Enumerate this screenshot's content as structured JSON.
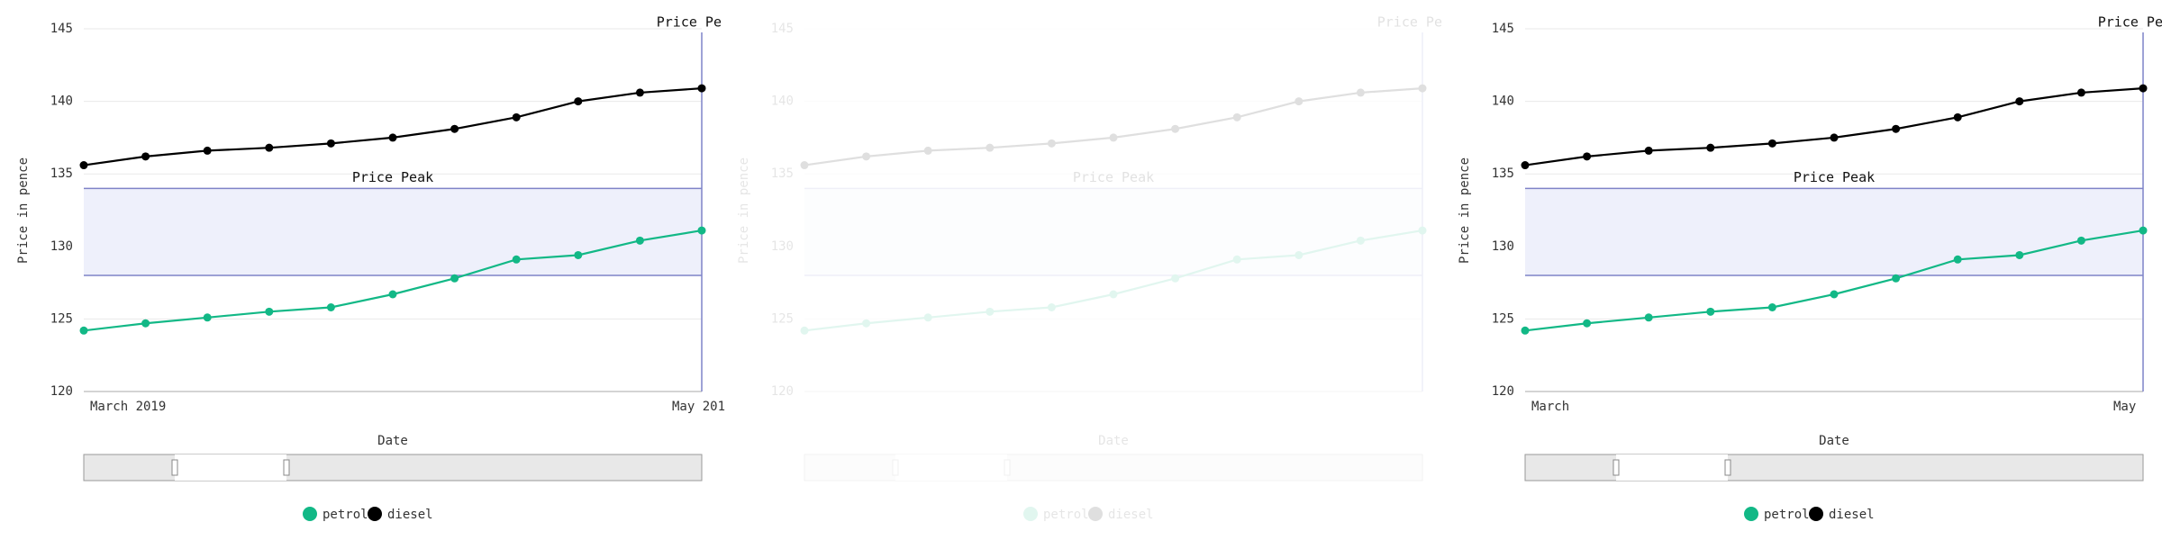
{
  "chart_data": [
    {
      "type": "line",
      "ylabel": "Price in pence",
      "xlabel": "Date",
      "categories": [
        "March 2019",
        null,
        null,
        null,
        null,
        null,
        null,
        null,
        null,
        null,
        "May 201"
      ],
      "series": [
        {
          "name": "petrol",
          "color": "#12b886",
          "values": [
            124.2,
            124.7,
            125.1,
            125.5,
            125.8,
            126.7,
            127.8,
            129.1,
            129.4,
            130.4,
            131.1
          ]
        },
        {
          "name": "diesel",
          "color": "#000000",
          "values": [
            135.6,
            136.2,
            136.6,
            136.8,
            137.1,
            137.5,
            138.1,
            138.9,
            140.0,
            140.6,
            140.9
          ]
        }
      ],
      "ylim": [
        120,
        145
      ],
      "yticks": [
        120,
        125,
        130,
        135,
        140,
        145
      ],
      "grid": true,
      "annotations": [
        {
          "label": "Price Peak",
          "y_range": [
            128,
            134
          ]
        },
        {
          "label": "Price Pe",
          "category": 10
        }
      ],
      "faded": false
    },
    {
      "type": "line",
      "ylabel": "Price in pence",
      "xlabel": "Date",
      "categories": [
        null,
        null,
        null,
        null,
        null,
        null,
        null,
        null,
        null,
        null,
        null
      ],
      "series": [
        {
          "name": "petrol",
          "color": "#12b886",
          "values": [
            124.2,
            124.7,
            125.1,
            125.5,
            125.8,
            126.7,
            127.8,
            129.1,
            129.4,
            130.4,
            131.1
          ]
        },
        {
          "name": "diesel",
          "color": "#000000",
          "values": [
            135.6,
            136.2,
            136.6,
            136.8,
            137.1,
            137.5,
            138.1,
            138.9,
            140.0,
            140.6,
            140.9
          ]
        }
      ],
      "ylim": [
        120,
        145
      ],
      "yticks": [
        120,
        125,
        130,
        135,
        140,
        145
      ],
      "grid": true,
      "annotations": [
        {
          "label": "Price Peak",
          "y_range": [
            128,
            134
          ]
        },
        {
          "label": "Price Pe",
          "category": 10
        }
      ],
      "faded": true
    },
    {
      "type": "line",
      "ylabel": "Price in pence",
      "xlabel": "Date",
      "categories": [
        "March",
        null,
        null,
        null,
        null,
        null,
        null,
        null,
        null,
        null,
        "May"
      ],
      "series": [
        {
          "name": "petrol",
          "color": "#12b886",
          "values": [
            124.2,
            124.7,
            125.1,
            125.5,
            125.8,
            126.7,
            127.8,
            129.1,
            129.4,
            130.4,
            131.1
          ]
        },
        {
          "name": "diesel",
          "color": "#000000",
          "values": [
            135.6,
            136.2,
            136.6,
            136.8,
            137.1,
            137.5,
            138.1,
            138.9,
            140.0,
            140.6,
            140.9
          ]
        }
      ],
      "ylim": [
        120,
        145
      ],
      "yticks": [
        120,
        125,
        130,
        135,
        140,
        145
      ],
      "grid": true,
      "annotations": [
        {
          "label": "Price Peak",
          "y_range": [
            128,
            134
          ]
        },
        {
          "label": "Price Pe",
          "category": 10
        }
      ],
      "faded": false
    }
  ]
}
